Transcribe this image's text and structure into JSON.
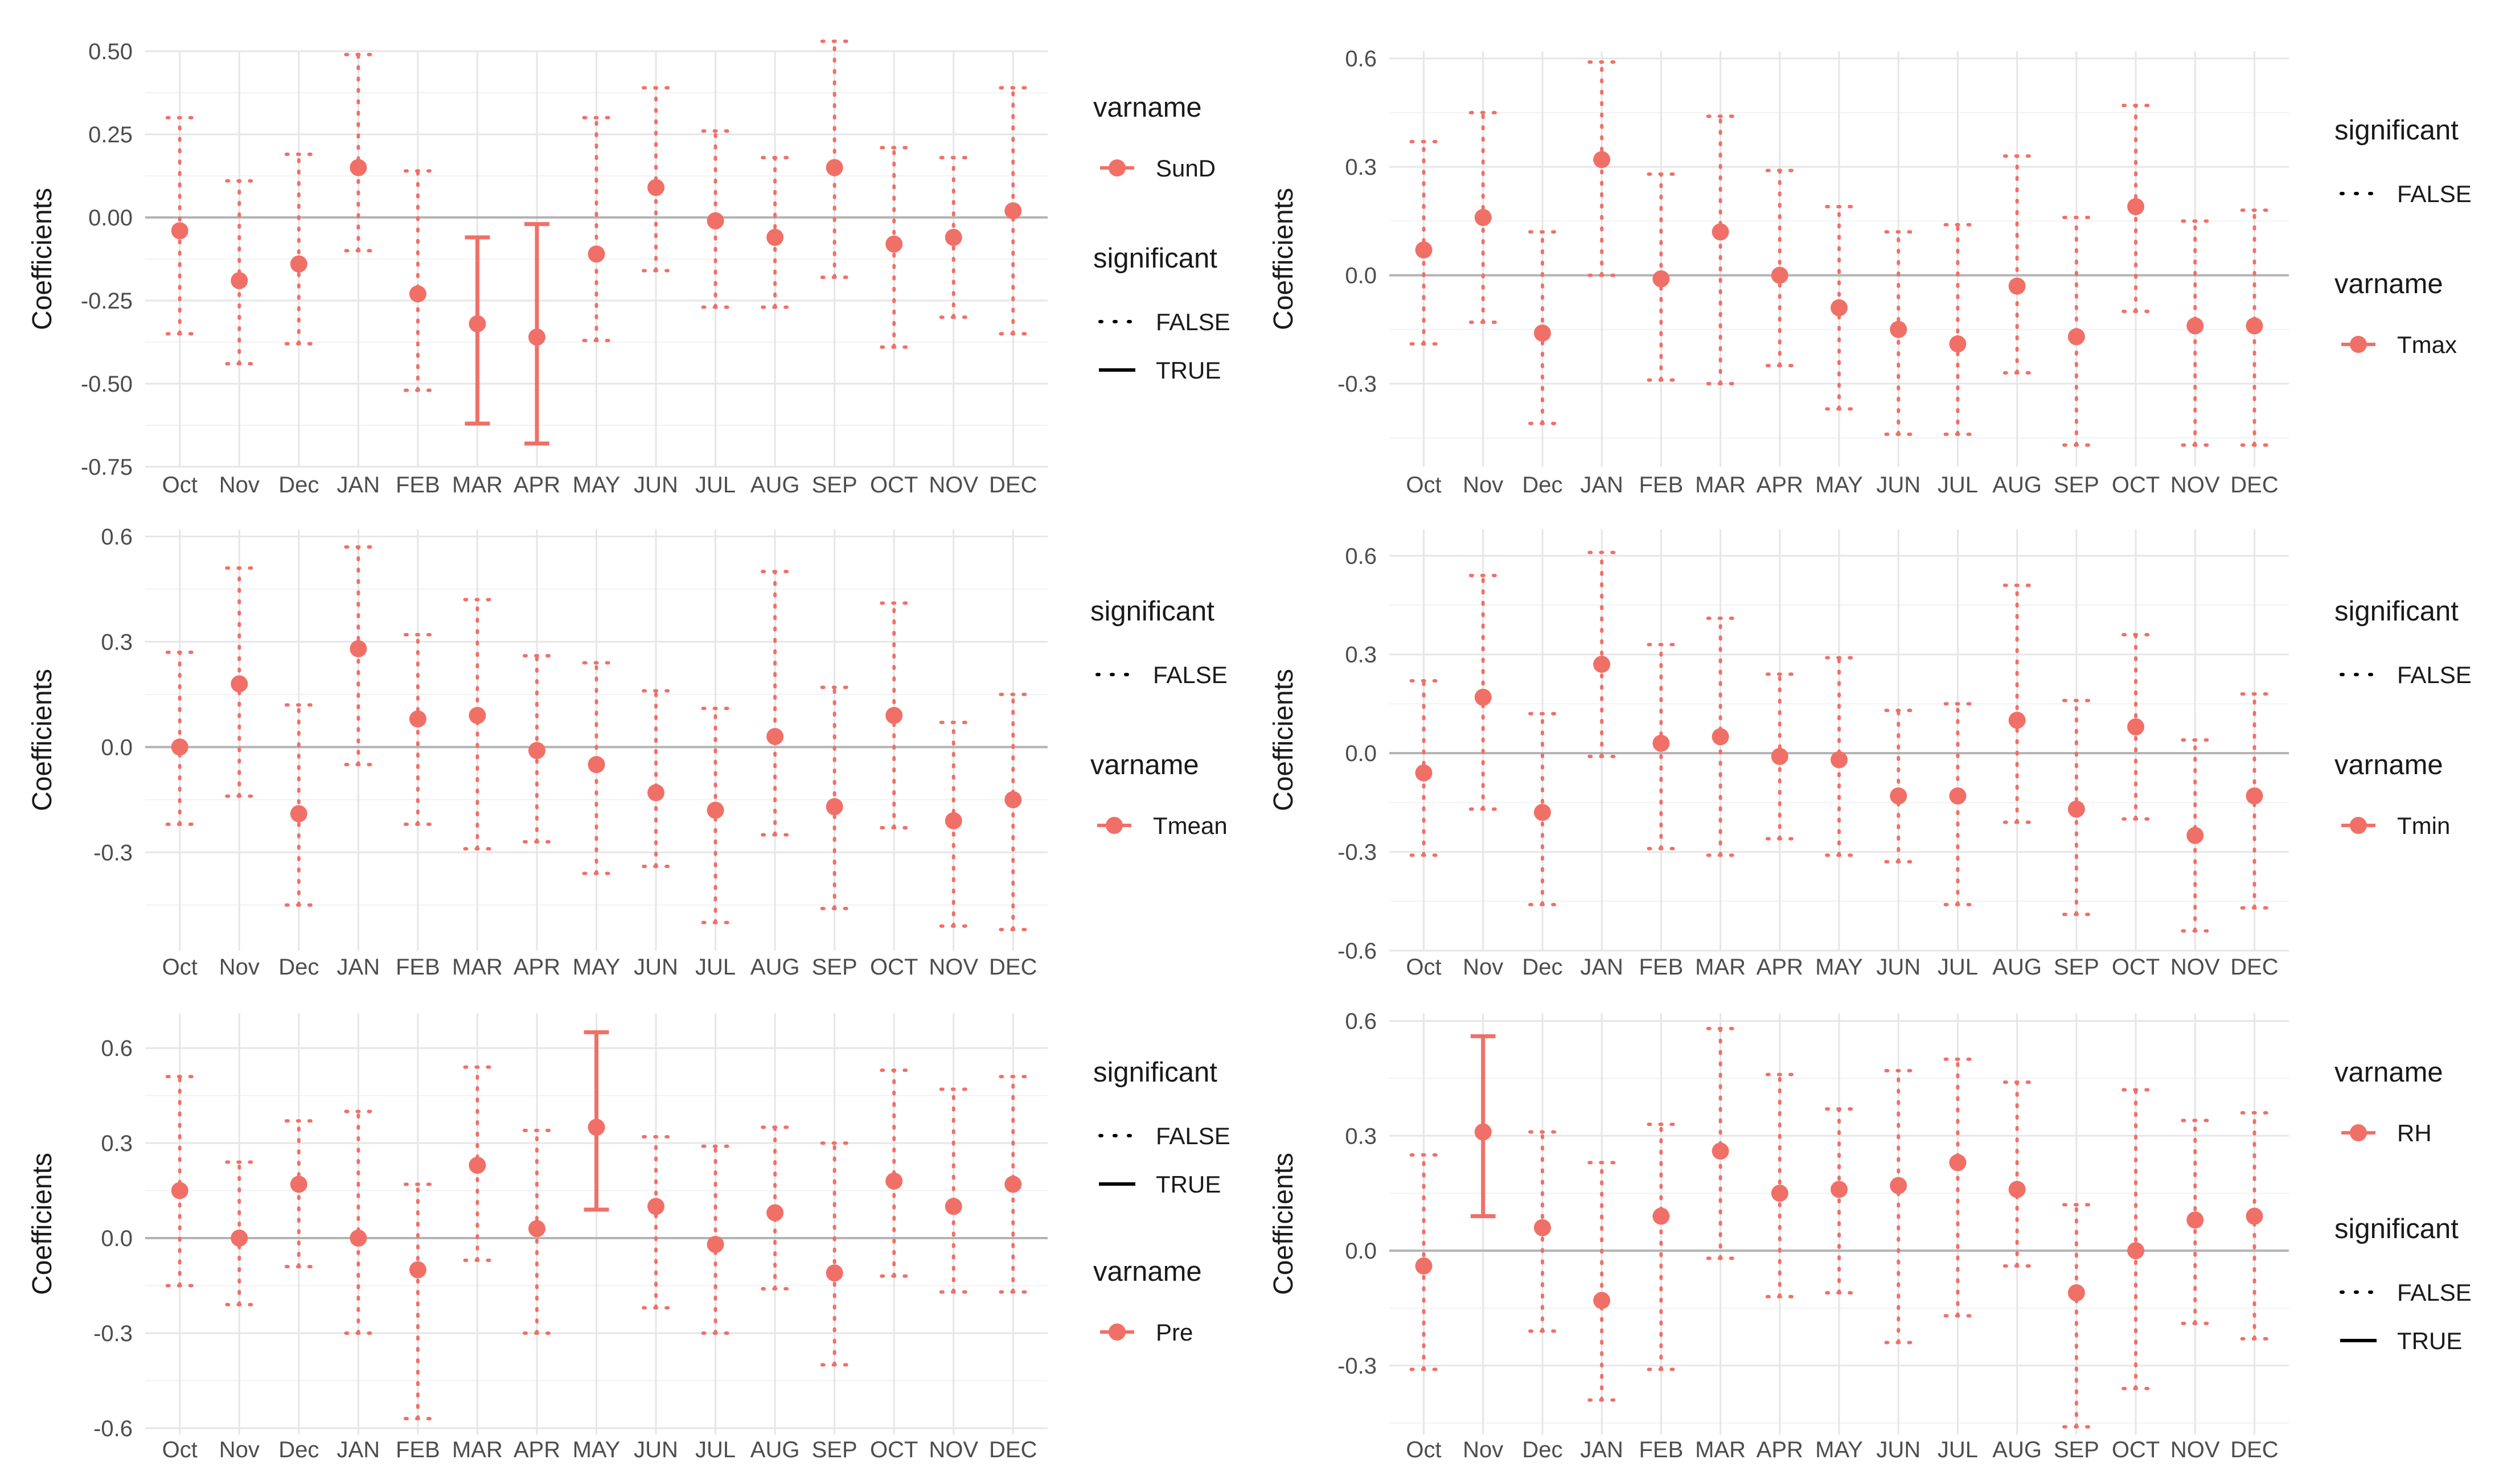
{
  "chart_data": [
    {
      "type": "errorbar",
      "ylabel": "Coefficients",
      "xlabel": "",
      "ylim": [
        -0.75,
        0.5
      ],
      "yticks": [
        0.5,
        0.25,
        0.0,
        -0.25,
        -0.5,
        -0.75
      ],
      "ytick_labels": [
        "0.50",
        "0.25",
        "0.00",
        "-0.25",
        "-0.50",
        "-0.75"
      ],
      "categories": [
        "Oct",
        "Nov",
        "Dec",
        "JAN",
        "FEB",
        "MAR",
        "APR",
        "MAY",
        "JUN",
        "JUL",
        "AUG",
        "SEP",
        "OCT",
        "NOV",
        "DEC"
      ],
      "values": [
        -0.04,
        -0.19,
        -0.14,
        0.15,
        -0.23,
        -0.32,
        -0.36,
        -0.11,
        0.09,
        -0.01,
        -0.06,
        0.15,
        -0.08,
        -0.06,
        0.02
      ],
      "lower": [
        -0.35,
        -0.44,
        -0.38,
        -0.1,
        -0.52,
        -0.62,
        -0.68,
        -0.37,
        -0.16,
        -0.27,
        -0.27,
        -0.18,
        -0.39,
        -0.3,
        -0.35
      ],
      "upper": [
        0.3,
        0.11,
        0.19,
        0.49,
        0.14,
        -0.06,
        -0.02,
        0.3,
        0.39,
        0.26,
        0.18,
        0.53,
        0.21,
        0.18,
        0.39
      ],
      "significant": [
        false,
        false,
        false,
        false,
        false,
        true,
        true,
        false,
        false,
        false,
        false,
        false,
        false,
        false,
        false
      ],
      "legend_order": [
        "varname",
        "significant"
      ],
      "legend": {
        "varname_title": "varname",
        "varname_value": "SunD",
        "significant_title": "significant",
        "significant_values": [
          "FALSE",
          "TRUE"
        ]
      },
      "color": "#f07067"
    },
    {
      "type": "errorbar",
      "ylabel": "Coefficients",
      "xlabel": "",
      "ylim": [
        -0.53,
        0.62
      ],
      "yticks": [
        0.6,
        0.3,
        0.0,
        -0.3
      ],
      "ytick_labels": [
        "0.6",
        "0.3",
        "0.0",
        "-0.3"
      ],
      "categories": [
        "Oct",
        "Nov",
        "Dec",
        "JAN",
        "FEB",
        "MAR",
        "APR",
        "MAY",
        "JUN",
        "JUL",
        "AUG",
        "SEP",
        "OCT",
        "NOV",
        "DEC"
      ],
      "values": [
        0.07,
        0.16,
        -0.16,
        0.32,
        -0.01,
        0.12,
        0.0,
        -0.09,
        -0.15,
        -0.19,
        -0.03,
        -0.17,
        0.19,
        -0.14,
        -0.14
      ],
      "lower": [
        -0.19,
        -0.13,
        -0.41,
        0.0,
        -0.29,
        -0.3,
        -0.25,
        -0.37,
        -0.44,
        -0.44,
        -0.27,
        -0.47,
        -0.1,
        -0.47,
        -0.47
      ],
      "upper": [
        0.37,
        0.45,
        0.12,
        0.59,
        0.28,
        0.44,
        0.29,
        0.19,
        0.12,
        0.14,
        0.33,
        0.16,
        0.47,
        0.15,
        0.18
      ],
      "significant": [
        false,
        false,
        false,
        false,
        false,
        false,
        false,
        false,
        false,
        false,
        false,
        false,
        false,
        false,
        false
      ],
      "legend_order": [
        "significant",
        "varname"
      ],
      "legend": {
        "varname_title": "varname",
        "varname_value": "Tmax",
        "significant_title": "significant",
        "significant_values": [
          "FALSE"
        ]
      },
      "color": "#f07067"
    },
    {
      "type": "errorbar",
      "ylabel": "Coefficients",
      "xlabel": "",
      "ylim": [
        -0.58,
        0.62
      ],
      "yticks": [
        0.6,
        0.3,
        0.0,
        -0.3
      ],
      "ytick_labels": [
        "0.6",
        "0.3",
        "0.0",
        "-0.3"
      ],
      "categories": [
        "Oct",
        "Nov",
        "Dec",
        "JAN",
        "FEB",
        "MAR",
        "APR",
        "MAY",
        "JUN",
        "JUL",
        "AUG",
        "SEP",
        "OCT",
        "NOV",
        "DEC"
      ],
      "values": [
        0.0,
        0.18,
        -0.19,
        0.28,
        0.08,
        0.09,
        -0.01,
        -0.05,
        -0.13,
        -0.18,
        0.03,
        -0.17,
        0.09,
        -0.21,
        -0.15
      ],
      "lower": [
        -0.22,
        -0.14,
        -0.45,
        -0.05,
        -0.22,
        -0.29,
        -0.27,
        -0.36,
        -0.34,
        -0.5,
        -0.25,
        -0.46,
        -0.23,
        -0.51,
        -0.52
      ],
      "upper": [
        0.27,
        0.51,
        0.12,
        0.57,
        0.32,
        0.42,
        0.26,
        0.24,
        0.16,
        0.11,
        0.5,
        0.17,
        0.41,
        0.07,
        0.15
      ],
      "significant": [
        false,
        false,
        false,
        false,
        false,
        false,
        false,
        false,
        false,
        false,
        false,
        false,
        false,
        false,
        false
      ],
      "legend_order": [
        "significant",
        "varname"
      ],
      "legend": {
        "varname_title": "varname",
        "varname_value": "Tmean",
        "significant_title": "significant",
        "significant_values": [
          "FALSE"
        ]
      },
      "color": "#f07067"
    },
    {
      "type": "errorbar",
      "ylabel": "Coefficients",
      "xlabel": "",
      "ylim": [
        -0.6,
        0.68
      ],
      "yticks": [
        0.6,
        0.3,
        0.0,
        -0.3,
        -0.6
      ],
      "ytick_labels": [
        "0.6",
        "0.3",
        "0.0",
        "-0.3",
        "-0.6"
      ],
      "categories": [
        "Oct",
        "Nov",
        "Dec",
        "JAN",
        "FEB",
        "MAR",
        "APR",
        "MAY",
        "JUN",
        "JUL",
        "AUG",
        "SEP",
        "OCT",
        "NOV",
        "DEC"
      ],
      "values": [
        -0.06,
        0.17,
        -0.18,
        0.27,
        0.03,
        0.05,
        -0.01,
        -0.02,
        -0.13,
        -0.13,
        0.1,
        -0.17,
        0.08,
        -0.25,
        -0.13
      ],
      "lower": [
        -0.31,
        -0.17,
        -0.46,
        -0.01,
        -0.29,
        -0.31,
        -0.26,
        -0.31,
        -0.33,
        -0.46,
        -0.21,
        -0.49,
        -0.2,
        -0.54,
        -0.47
      ],
      "upper": [
        0.22,
        0.54,
        0.12,
        0.61,
        0.33,
        0.41,
        0.24,
        0.29,
        0.13,
        0.15,
        0.51,
        0.16,
        0.36,
        0.04,
        0.18
      ],
      "significant": [
        false,
        false,
        false,
        false,
        false,
        false,
        false,
        false,
        false,
        false,
        false,
        false,
        false,
        false,
        false
      ],
      "legend_order": [
        "significant",
        "varname"
      ],
      "legend": {
        "varname_title": "varname",
        "varname_value": "Tmin",
        "significant_title": "significant",
        "significant_values": [
          "FALSE"
        ]
      },
      "color": "#f07067"
    },
    {
      "type": "errorbar",
      "ylabel": "Coefficients",
      "xlabel": "",
      "ylim": [
        -0.62,
        0.71
      ],
      "yticks": [
        0.6,
        0.3,
        0.0,
        -0.3,
        -0.6
      ],
      "ytick_labels": [
        "0.6",
        "0.3",
        "0.0",
        "-0.3",
        "-0.6"
      ],
      "categories": [
        "Oct",
        "Nov",
        "Dec",
        "JAN",
        "FEB",
        "MAR",
        "APR",
        "MAY",
        "JUN",
        "JUL",
        "AUG",
        "SEP",
        "OCT",
        "NOV",
        "DEC"
      ],
      "values": [
        0.15,
        0.0,
        0.17,
        0.0,
        -0.1,
        0.23,
        0.03,
        0.35,
        0.1,
        -0.02,
        0.08,
        -0.11,
        0.18,
        0.1,
        0.17
      ],
      "lower": [
        -0.15,
        -0.21,
        -0.09,
        -0.3,
        -0.57,
        -0.07,
        -0.3,
        0.09,
        -0.22,
        -0.3,
        -0.16,
        -0.4,
        -0.12,
        -0.17,
        -0.17
      ],
      "upper": [
        0.51,
        0.24,
        0.37,
        0.4,
        0.17,
        0.54,
        0.34,
        0.65,
        0.32,
        0.29,
        0.35,
        0.3,
        0.53,
        0.47,
        0.51
      ],
      "significant": [
        false,
        false,
        false,
        false,
        false,
        false,
        false,
        true,
        false,
        false,
        false,
        false,
        false,
        false,
        false
      ],
      "legend_order": [
        "significant",
        "varname"
      ],
      "legend": {
        "varname_title": "varname",
        "varname_value": "Pre",
        "significant_title": "significant",
        "significant_values": [
          "FALSE",
          "TRUE"
        ]
      },
      "color": "#f07067"
    },
    {
      "type": "errorbar",
      "ylabel": "Coefficients",
      "xlabel": "",
      "ylim": [
        -0.48,
        0.62
      ],
      "yticks": [
        0.6,
        0.3,
        0.0,
        -0.3
      ],
      "ytick_labels": [
        "0.6",
        "0.3",
        "0.0",
        "-0.3"
      ],
      "categories": [
        "Oct",
        "Nov",
        "Dec",
        "JAN",
        "FEB",
        "MAR",
        "APR",
        "MAY",
        "JUN",
        "JUL",
        "AUG",
        "SEP",
        "OCT",
        "NOV",
        "DEC"
      ],
      "values": [
        -0.04,
        0.31,
        0.06,
        -0.13,
        0.09,
        0.26,
        0.15,
        0.16,
        0.17,
        0.23,
        0.16,
        -0.11,
        0.0,
        0.08,
        0.09
      ],
      "lower": [
        -0.31,
        0.09,
        -0.21,
        -0.39,
        -0.31,
        -0.02,
        -0.12,
        -0.11,
        -0.24,
        -0.17,
        -0.04,
        -0.46,
        -0.36,
        -0.19,
        -0.23
      ],
      "upper": [
        0.25,
        0.56,
        0.31,
        0.23,
        0.33,
        0.58,
        0.46,
        0.37,
        0.47,
        0.5,
        0.44,
        0.12,
        0.42,
        0.34,
        0.36
      ],
      "significant": [
        false,
        true,
        false,
        false,
        false,
        false,
        false,
        false,
        false,
        false,
        false,
        false,
        false,
        false,
        false
      ],
      "legend_order": [
        "varname",
        "significant"
      ],
      "legend": {
        "varname_title": "varname",
        "varname_value": "RH",
        "significant_title": "significant",
        "significant_values": [
          "FALSE",
          "TRUE"
        ]
      },
      "color": "#f07067"
    }
  ]
}
